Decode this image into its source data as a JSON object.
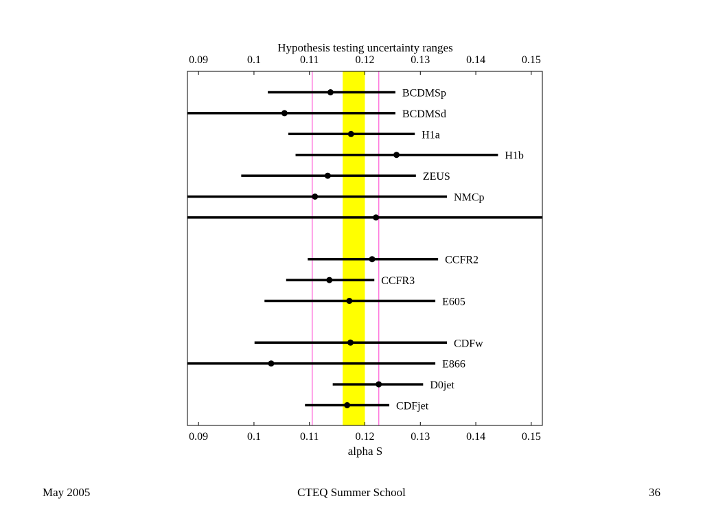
{
  "slide": {
    "footer_left": "May 2005",
    "footer_center": "CTEQ Summer School",
    "footer_right": "36"
  },
  "chart_data": {
    "type": "scatter",
    "title": "Hypothesis testing uncertainty ranges",
    "xlabel": "alpha S",
    "xlim": [
      0.088,
      0.152
    ],
    "xticks": [
      0.09,
      0.1,
      0.11,
      0.12,
      0.13,
      0.14,
      0.15
    ],
    "xtick_labels": [
      "0.09",
      "0.1",
      "0.11",
      "0.12",
      "0.13",
      "0.14",
      "0.15"
    ],
    "grid": false,
    "colors": {
      "band": "#ffff00",
      "band_edge_lines": "#ff77dd",
      "points": "#000000"
    },
    "band": [
      0.116,
      0.12
    ],
    "reference_lines": [
      0.1105,
      0.1225
    ],
    "points": [
      {
        "label": "BCDMSp",
        "row": 0,
        "value": 0.1138,
        "low": 0.1025,
        "high": 0.1255
      },
      {
        "label": "BCDMSd",
        "row": 1,
        "value": 0.1055,
        "low": 0.088,
        "high": 0.1255
      },
      {
        "label": "H1a",
        "row": 2,
        "value": 0.1175,
        "low": 0.1062,
        "high": 0.129
      },
      {
        "label": "H1b",
        "row": 3,
        "value": 0.1257,
        "low": 0.1075,
        "high": 0.144
      },
      {
        "label": "ZEUS",
        "row": 4,
        "value": 0.1133,
        "low": 0.0977,
        "high": 0.1292
      },
      {
        "label": "NMCp",
        "row": 5,
        "value": 0.111,
        "low": 0.088,
        "high": 0.1348
      },
      {
        "label": "",
        "row": 6,
        "value": 0.122,
        "low": 0.088,
        "high": 0.152
      },
      {
        "label": "CCFR2",
        "row": 8,
        "value": 0.1213,
        "low": 0.1097,
        "high": 0.1332
      },
      {
        "label": "CCFR3",
        "row": 9,
        "value": 0.1136,
        "low": 0.1058,
        "high": 0.1217
      },
      {
        "label": "E605",
        "row": 10,
        "value": 0.1172,
        "low": 0.1019,
        "high": 0.1327
      },
      {
        "label": "CDFw",
        "row": 12,
        "value": 0.1174,
        "low": 0.1001,
        "high": 0.1348
      },
      {
        "label": "E866",
        "row": 13,
        "value": 0.1031,
        "low": 0.088,
        "high": 0.1327
      },
      {
        "label": "D0jet",
        "row": 14,
        "value": 0.1225,
        "low": 0.1142,
        "high": 0.1305
      },
      {
        "label": "CDFjet",
        "row": 15,
        "value": 0.1168,
        "low": 0.1092,
        "high": 0.1244
      }
    ]
  }
}
